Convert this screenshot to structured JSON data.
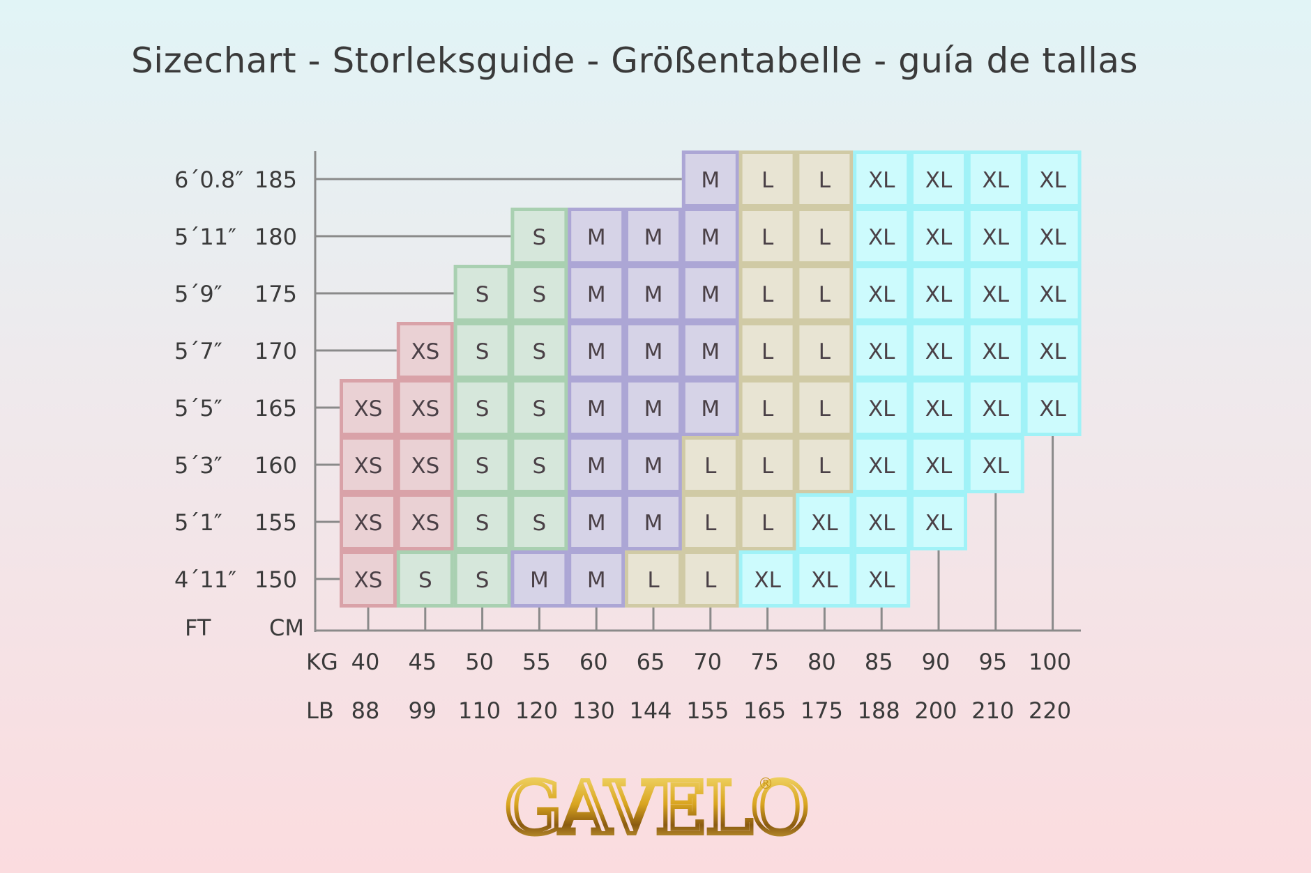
{
  "title": "Sizechart - Storleksguide - Größentabelle - guía de tallas",
  "logo_text": "GAVELO",
  "chart_data": {
    "type": "table",
    "title": "Sizechart - Storleksguide - Größentabelle - guía de tallas",
    "y_units": [
      "FT",
      "CM"
    ],
    "x_units": [
      "KG",
      "LB"
    ],
    "kg": [
      "40",
      "45",
      "50",
      "55",
      "60",
      "65",
      "70",
      "75",
      "80",
      "85",
      "90",
      "95",
      "100"
    ],
    "lb": [
      "88",
      "99",
      "110",
      "120",
      "130",
      "144",
      "155",
      "165",
      "175",
      "188",
      "200",
      "210",
      "220"
    ],
    "rows": [
      {
        "ft": "6´0.8″",
        "cm": "185",
        "sizes": [
          null,
          null,
          null,
          null,
          null,
          null,
          "M",
          "L",
          "L",
          "XL",
          "XL",
          "XL",
          "XL"
        ]
      },
      {
        "ft": "5´11″",
        "cm": "180",
        "sizes": [
          null,
          null,
          null,
          "S",
          "M",
          "M",
          "M",
          "L",
          "L",
          "XL",
          "XL",
          "XL",
          "XL"
        ]
      },
      {
        "ft": "5´9″",
        "cm": "175",
        "sizes": [
          null,
          null,
          "S",
          "S",
          "M",
          "M",
          "M",
          "L",
          "L",
          "XL",
          "XL",
          "XL",
          "XL"
        ]
      },
      {
        "ft": "5´7″",
        "cm": "170",
        "sizes": [
          null,
          "XS",
          "S",
          "S",
          "M",
          "M",
          "M",
          "L",
          "L",
          "XL",
          "XL",
          "XL",
          "XL"
        ]
      },
      {
        "ft": "5´5″",
        "cm": "165",
        "sizes": [
          "XS",
          "XS",
          "S",
          "S",
          "M",
          "M",
          "M",
          "L",
          "L",
          "XL",
          "XL",
          "XL",
          "XL"
        ]
      },
      {
        "ft": "5´3″",
        "cm": "160",
        "sizes": [
          "XS",
          "XS",
          "S",
          "S",
          "M",
          "M",
          "L",
          "L",
          "L",
          "XL",
          "XL",
          "XL",
          null
        ]
      },
      {
        "ft": "5´1″",
        "cm": "155",
        "sizes": [
          "XS",
          "XS",
          "S",
          "S",
          "M",
          "M",
          "L",
          "L",
          "XL",
          "XL",
          "XL",
          null,
          null
        ]
      },
      {
        "ft": "4´11″",
        "cm": "150",
        "sizes": [
          "XS",
          "S",
          "S",
          "M",
          "M",
          "L",
          "L",
          "XL",
          "XL",
          "XL",
          null,
          null,
          null
        ]
      }
    ],
    "size_colors": {
      "XS": {
        "fill": "#ead1d4",
        "border": "#d9a2a8"
      },
      "S": {
        "fill": "#d6e7db",
        "border": "#a9d0b1"
      },
      "M": {
        "fill": "#d6d3e7",
        "border": "#aca6d5"
      },
      "L": {
        "fill": "#e8e4d3",
        "border": "#d0caa5"
      },
      "XL": {
        "fill": "#cdfbfd",
        "border": "#a0f2f7"
      }
    },
    "axis_color": "#8a8a8a",
    "grid": false
  }
}
